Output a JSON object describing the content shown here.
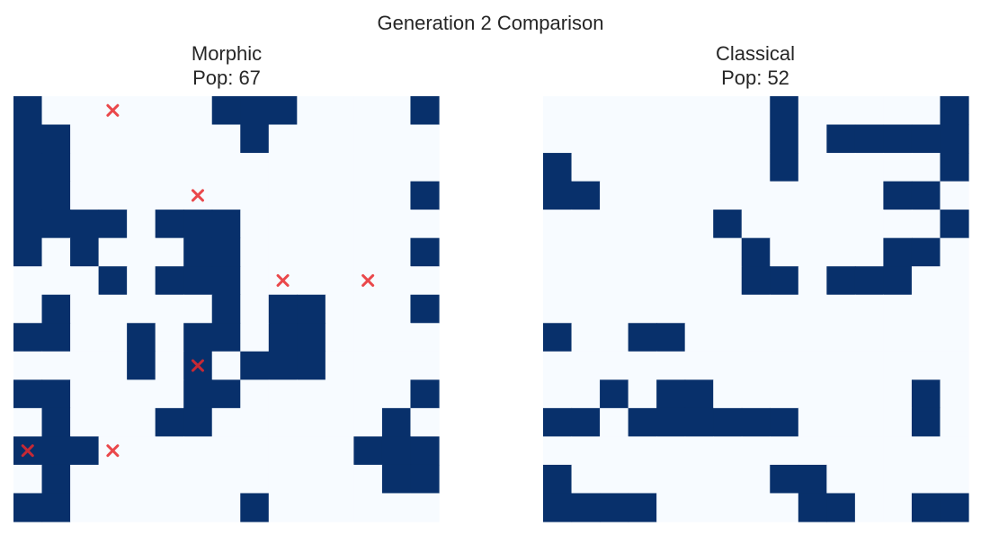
{
  "figure": {
    "title": "Generation 2 Comparison"
  },
  "colors": {
    "alive": "#08306b",
    "dead": "#f7fbff",
    "marker": "#e8282b"
  },
  "chart_data": [
    {
      "type": "heatmap",
      "title_line1": "Morphic",
      "title_line2": "Pop: 67",
      "population": 67,
      "rows": 15,
      "cols": 15,
      "grid": [
        [
          1,
          0,
          0,
          0,
          0,
          0,
          0,
          1,
          1,
          1,
          0,
          0,
          0,
          0,
          1
        ],
        [
          1,
          1,
          0,
          0,
          0,
          0,
          0,
          0,
          1,
          0,
          0,
          0,
          0,
          0,
          0
        ],
        [
          1,
          1,
          0,
          0,
          0,
          0,
          0,
          0,
          0,
          0,
          0,
          0,
          0,
          0,
          0
        ],
        [
          1,
          1,
          0,
          0,
          0,
          0,
          0,
          0,
          0,
          0,
          0,
          0,
          0,
          0,
          1
        ],
        [
          1,
          1,
          1,
          1,
          0,
          1,
          1,
          1,
          0,
          0,
          0,
          0,
          0,
          0,
          0
        ],
        [
          1,
          0,
          1,
          0,
          0,
          0,
          1,
          1,
          0,
          0,
          0,
          0,
          0,
          0,
          1
        ],
        [
          0,
          0,
          0,
          1,
          0,
          1,
          1,
          1,
          0,
          0,
          0,
          0,
          0,
          0,
          0
        ],
        [
          0,
          1,
          0,
          0,
          0,
          0,
          0,
          1,
          0,
          1,
          1,
          0,
          0,
          0,
          1
        ],
        [
          1,
          1,
          0,
          0,
          1,
          0,
          1,
          1,
          0,
          1,
          1,
          0,
          0,
          0,
          0
        ],
        [
          0,
          0,
          0,
          0,
          1,
          0,
          1,
          0,
          1,
          1,
          1,
          0,
          0,
          0,
          0
        ],
        [
          1,
          1,
          0,
          0,
          0,
          0,
          1,
          1,
          0,
          0,
          0,
          0,
          0,
          0,
          1
        ],
        [
          0,
          1,
          0,
          0,
          0,
          1,
          1,
          0,
          0,
          0,
          0,
          0,
          0,
          1,
          0
        ],
        [
          1,
          1,
          1,
          0,
          0,
          0,
          0,
          0,
          0,
          0,
          0,
          0,
          1,
          1,
          1
        ],
        [
          0,
          1,
          0,
          0,
          0,
          0,
          0,
          0,
          0,
          0,
          0,
          0,
          0,
          1,
          1
        ],
        [
          1,
          1,
          0,
          0,
          0,
          0,
          0,
          0,
          1,
          0,
          0,
          0,
          0,
          0,
          0
        ]
      ],
      "markers": [
        [
          0,
          3
        ],
        [
          3,
          6
        ],
        [
          6,
          9
        ],
        [
          6,
          12
        ],
        [
          9,
          6
        ],
        [
          12,
          0
        ],
        [
          12,
          3
        ]
      ]
    },
    {
      "type": "heatmap",
      "title_line1": "Classical",
      "title_line2": "Pop: 52",
      "population": 52,
      "rows": 15,
      "cols": 15,
      "grid": [
        [
          0,
          0,
          0,
          0,
          0,
          0,
          0,
          0,
          1,
          0,
          0,
          0,
          0,
          0,
          1
        ],
        [
          0,
          0,
          0,
          0,
          0,
          0,
          0,
          0,
          1,
          0,
          1,
          1,
          1,
          1,
          1
        ],
        [
          1,
          0,
          0,
          0,
          0,
          0,
          0,
          0,
          1,
          0,
          0,
          0,
          0,
          0,
          1
        ],
        [
          1,
          1,
          0,
          0,
          0,
          0,
          0,
          0,
          0,
          0,
          0,
          0,
          1,
          1,
          0
        ],
        [
          0,
          0,
          0,
          0,
          0,
          0,
          1,
          0,
          0,
          0,
          0,
          0,
          0,
          0,
          1
        ],
        [
          0,
          0,
          0,
          0,
          0,
          0,
          0,
          1,
          0,
          0,
          0,
          0,
          1,
          1,
          0
        ],
        [
          0,
          0,
          0,
          0,
          0,
          0,
          0,
          1,
          1,
          0,
          1,
          1,
          1,
          0,
          0
        ],
        [
          0,
          0,
          0,
          0,
          0,
          0,
          0,
          0,
          0,
          0,
          0,
          0,
          0,
          0,
          0
        ],
        [
          1,
          0,
          0,
          1,
          1,
          0,
          0,
          0,
          0,
          0,
          0,
          0,
          0,
          0,
          0
        ],
        [
          0,
          0,
          0,
          0,
          0,
          0,
          0,
          0,
          0,
          0,
          0,
          0,
          0,
          0,
          0
        ],
        [
          0,
          0,
          1,
          0,
          1,
          1,
          0,
          0,
          0,
          0,
          0,
          0,
          0,
          1,
          0
        ],
        [
          1,
          1,
          0,
          1,
          1,
          1,
          1,
          1,
          1,
          0,
          0,
          0,
          0,
          1,
          0
        ],
        [
          0,
          0,
          0,
          0,
          0,
          0,
          0,
          0,
          0,
          0,
          0,
          0,
          0,
          0,
          0
        ],
        [
          1,
          0,
          0,
          0,
          0,
          0,
          0,
          0,
          1,
          1,
          0,
          0,
          0,
          0,
          0
        ],
        [
          1,
          1,
          1,
          1,
          0,
          0,
          0,
          0,
          0,
          1,
          1,
          0,
          0,
          1,
          1
        ]
      ],
      "markers": []
    }
  ]
}
